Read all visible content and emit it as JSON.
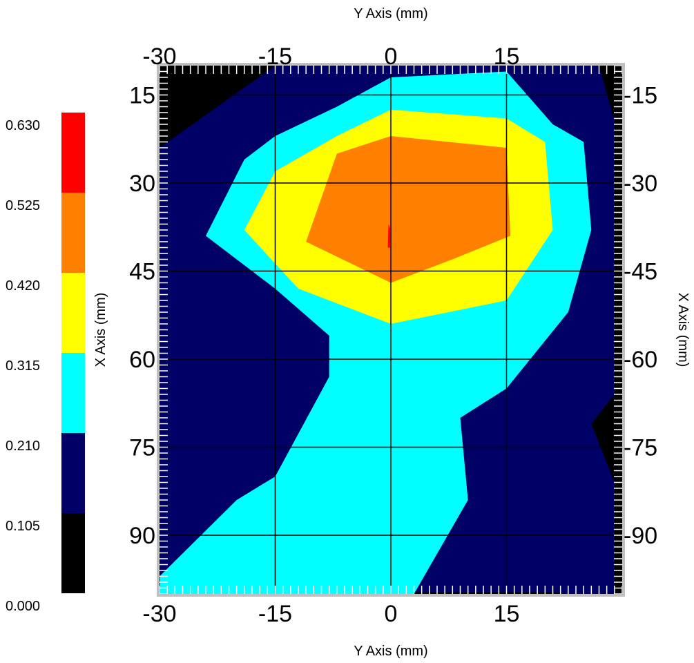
{
  "chart_data": {
    "type": "heatmap",
    "subtype": "filled-contour",
    "title": "",
    "x_axis": {
      "label": "Y Axis (mm)",
      "range": [
        -30,
        30
      ],
      "ticks": [
        -30,
        -15,
        0,
        15
      ],
      "tick_labels": [
        "-30",
        "-15",
        "0",
        "15"
      ]
    },
    "y_axis": {
      "label": "X Axis (mm)",
      "range": [
        10,
        100
      ],
      "inverted": true,
      "ticks": [
        15,
        30,
        45,
        60,
        75,
        90
      ],
      "tick_labels_left": [
        "15",
        "30",
        "45",
        "60",
        "75",
        "90"
      ],
      "tick_labels_right": [
        "-15",
        "-30",
        "-45",
        "-60",
        "-75",
        "-90"
      ]
    },
    "grid": true,
    "colorbar": {
      "position": "left",
      "levels": [
        0.0,
        0.105,
        0.21,
        0.315,
        0.42,
        0.525,
        0.63
      ],
      "labels": [
        "0.000",
        "0.105",
        "0.210",
        "0.315",
        "0.420",
        "0.525",
        "0.630"
      ],
      "colors": [
        "#000000",
        "#000066",
        "#00ffff",
        "#ffff00",
        "#ff8000",
        "#ff0000"
      ]
    },
    "contour_levels": [
      {
        "level_index": 0,
        "range": [
          0.0,
          0.105
        ],
        "color": "#000000",
        "note": "background fill"
      },
      {
        "level_index": 1,
        "range": [
          0.105,
          0.21
        ],
        "color": "#000066",
        "polygons": [
          [
            [
              -30,
              24
            ],
            [
              -30,
              100
            ],
            [
              3,
              100
            ],
            [
              3,
              99.7
            ],
            [
              29,
              99.7
            ],
            [
              29,
              99.5
            ],
            [
              28,
              90
            ],
            [
              22,
              100
            ],
            [
              29,
              100
            ],
            [
              29,
              81
            ],
            [
              26,
              71
            ],
            [
              29,
              66
            ],
            [
              29,
              19.5
            ],
            [
              27,
              10
            ],
            [
              -15,
              10
            ],
            [
              -30,
              24
            ]
          ]
        ]
      },
      {
        "level_index": 2,
        "range": [
          0.21,
          0.315
        ],
        "color": "#00ffff",
        "polygons": [
          [
            [
              0,
              12
            ],
            [
              15,
              11
            ],
            [
              21,
              20
            ],
            [
              25,
              23
            ],
            [
              26,
              38
            ],
            [
              23,
              52
            ],
            [
              15,
              65
            ],
            [
              9,
              70
            ],
            [
              10,
              84
            ],
            [
              3,
              100
            ],
            [
              -30,
              100
            ],
            [
              -30,
              97
            ],
            [
              -20,
              84
            ],
            [
              -15,
              80
            ],
            [
              -8,
              63
            ],
            [
              -8,
              56
            ],
            [
              -15,
              48
            ],
            [
              -24,
              39
            ],
            [
              -19,
              26
            ],
            [
              -15,
              22
            ],
            [
              -7,
              17
            ]
          ]
        ]
      },
      {
        "level_index": 3,
        "range": [
          0.315,
          0.42
        ],
        "color": "#ffff00",
        "polygons": [
          [
            [
              0,
              17.5
            ],
            [
              15,
              19
            ],
            [
              20,
              23
            ],
            [
              21,
              38
            ],
            [
              15,
              50
            ],
            [
              0,
              54
            ],
            [
              -12,
              48
            ],
            [
              -19,
              38
            ],
            [
              -15,
              28
            ],
            [
              -7,
              22
            ]
          ]
        ]
      },
      {
        "level_index": 4,
        "range": [
          0.42,
          0.525
        ],
        "color": "#ff8000",
        "polygons": [
          [
            [
              0,
              22
            ],
            [
              15,
              24
            ],
            [
              15.5,
              39
            ],
            [
              8,
              43
            ],
            [
              0,
              47
            ],
            [
              -11,
              40
            ],
            [
              -7,
              25
            ]
          ]
        ]
      },
      {
        "level_index": 5,
        "range": [
          0.525,
          0.63
        ],
        "color": "#ff0000",
        "polygons": [
          [
            [
              -0.3,
              37
            ],
            [
              0,
              38
            ],
            [
              0,
              41
            ],
            [
              -0.4,
              41
            ]
          ]
        ]
      }
    ]
  }
}
